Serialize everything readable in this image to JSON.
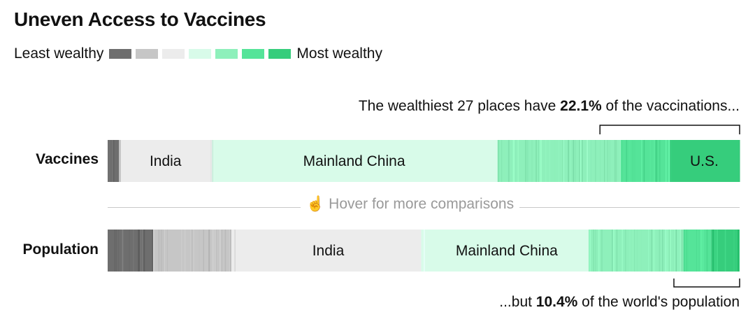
{
  "title": "Uneven Access to Vaccines",
  "legend": {
    "low_label": "Least wealthy",
    "high_label": "Most wealthy",
    "swatches": [
      "#6e6e6e",
      "#c6c6c6",
      "#ececec",
      "#d8fbe9",
      "#8ef0bb",
      "#55e499",
      "#36cd7c"
    ]
  },
  "annotations": {
    "top_prefix": "The wealthiest 27 places have ",
    "top_value": "22.1%",
    "top_suffix": " of the vaccinations...",
    "bottom_prefix": "...but ",
    "bottom_value": "10.4%",
    "bottom_suffix": " of the world's population"
  },
  "hover_hint": "Hover for more comparisons",
  "chart_data": {
    "type": "bar",
    "orientation": "horizontal-stacked-100",
    "categories": [
      "Vaccines",
      "Population"
    ],
    "wealth_groups": [
      "1",
      "2",
      "3",
      "4",
      "5",
      "6",
      "7"
    ],
    "group_colors": [
      "#6e6e6e",
      "#c6c6c6",
      "#ececec",
      "#d8fbe9",
      "#8ef0bb",
      "#55e499",
      "#36cd7c"
    ],
    "series": [
      {
        "category": "Vaccines",
        "group_shares_pct": [
          1.8,
          0.3,
          14.4,
          45.2,
          19.5,
          7.8,
          11.0
        ]
      },
      {
        "category": "Population",
        "group_shares_pct": [
          7.2,
          12.4,
          30.0,
          26.5,
          15.0,
          4.4,
          4.5
        ]
      }
    ],
    "labeled_places": [
      {
        "category": "Vaccines",
        "name": "India",
        "group": 3,
        "start_pct": 1.9,
        "end_pct": 16.4
      },
      {
        "category": "Vaccines",
        "name": "Mainland China",
        "group": 4,
        "start_pct": 16.4,
        "end_pct": 61.6
      },
      {
        "category": "Vaccines",
        "name": "U.S.",
        "group": 7,
        "start_pct": 88.9,
        "end_pct": 99.9
      },
      {
        "category": "Population",
        "name": "India",
        "group": 3,
        "start_pct": 19.9,
        "end_pct": 49.9
      },
      {
        "category": "Population",
        "name": "Mainland China",
        "group": 4,
        "start_pct": 49.9,
        "end_pct": 76.4
      }
    ],
    "brackets": [
      {
        "category": "Vaccines",
        "group": "wealthiest 27 places",
        "value_pct": 22.1
      },
      {
        "category": "Population",
        "group": "wealthiest 27 places",
        "value_pct": 10.4
      }
    ]
  }
}
